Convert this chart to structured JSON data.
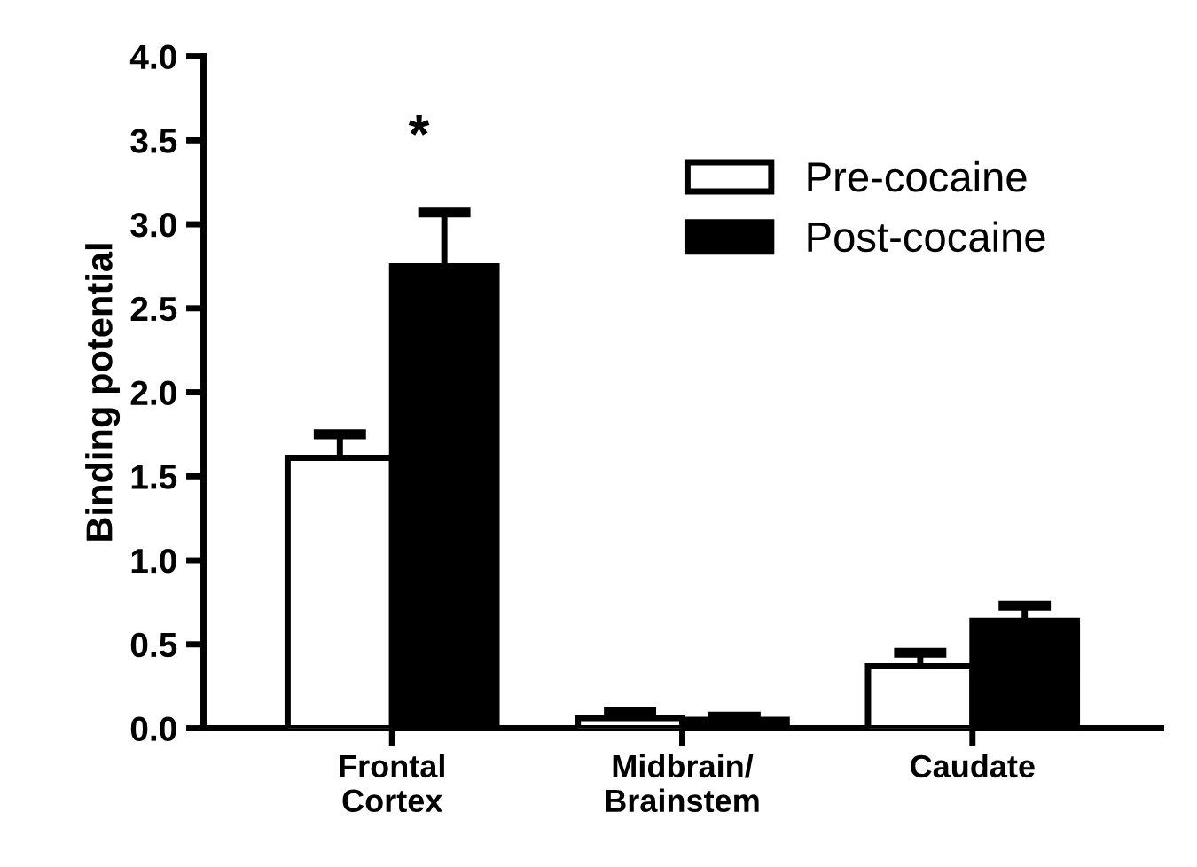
{
  "chart_data": {
    "type": "bar",
    "ylabel": "Binding potential",
    "categories": [
      "Frontal\nCortex",
      "Midbrain/\nBrainstem",
      "Caudate"
    ],
    "series": [
      {
        "name": "Pre-cocaine",
        "color": "#ffffff",
        "values": [
          1.61,
          0.06,
          0.37
        ],
        "errors": [
          [
            1.61,
            1.75
          ],
          [
            0.06,
            0.1
          ],
          [
            0.37,
            0.45
          ]
        ]
      },
      {
        "name": "Post-cocaine",
        "color": "#000000",
        "values": [
          2.75,
          0.05,
          0.64
        ],
        "errors": [
          [
            2.75,
            3.07
          ],
          [
            0.05,
            0.07
          ],
          [
            0.64,
            0.73
          ]
        ]
      }
    ],
    "annotations": [
      "*"
    ],
    "ylim": [
      0,
      4.0
    ],
    "yticks": [
      {
        "value": 0,
        "label": "0.0"
      },
      0.5,
      {
        "value": 1,
        "label": "1.0"
      },
      1.5,
      {
        "value": 2,
        "label": "2.0"
      },
      2.5,
      {
        "value": 3,
        "label": "3.0"
      },
      3.5,
      {
        "value": 4,
        "label": "4.0"
      }
    ],
    "grid": false,
    "legend": "top right"
  }
}
